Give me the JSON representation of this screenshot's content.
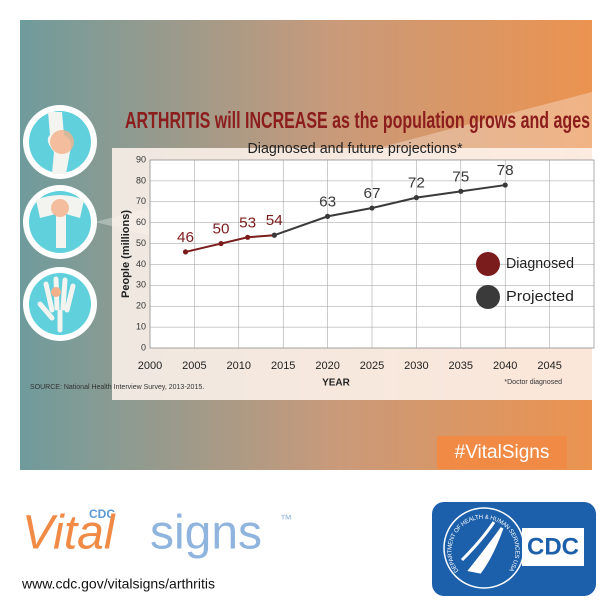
{
  "chart_data": {
    "type": "line",
    "title": "ARTHRITIS will INCREASE as the population grows and ages",
    "subtitle": "Diagnosed and future projections*",
    "y_label": "People (millions)",
    "x_label": "YEAR",
    "source": "SOURCE: National Health Interview Survey, 2013-2015.",
    "note": "*Doctor diagnosed",
    "x": [
      2004,
      2008,
      2011,
      2014,
      2020,
      2025,
      2030,
      2035,
      2040
    ],
    "series": [
      {
        "name": "Diagnosed",
        "color": "#7b1c1c",
        "values": [
          46,
          50,
          53,
          54,
          null,
          null,
          null,
          null,
          null
        ]
      },
      {
        "name": "Projected",
        "color": "#3a3a3a",
        "values": [
          null,
          null,
          null,
          54,
          63,
          67,
          72,
          75,
          78
        ]
      }
    ],
    "xlim": [
      2000,
      2050
    ],
    "xticks": [
      2000,
      2005,
      2010,
      2015,
      2020,
      2025,
      2030,
      2035,
      2040,
      2045
    ],
    "ylim": [
      0,
      90
    ],
    "yticks": [
      0,
      10,
      20,
      30,
      40,
      50,
      60,
      70,
      80,
      90
    ],
    "grid": true,
    "legend": "right"
  },
  "branding": {
    "hashtag": "#VitalSigns",
    "cdc_small": "CDC",
    "vital": "Vital",
    "signs": "signs",
    "tm": "™",
    "url": "www.cdc.gov/vitalsigns/arthritis",
    "seal_text": "DEPARTMENT OF HEALTH & HUMAN SERVICES USA",
    "cdc_logo": "CDC"
  }
}
